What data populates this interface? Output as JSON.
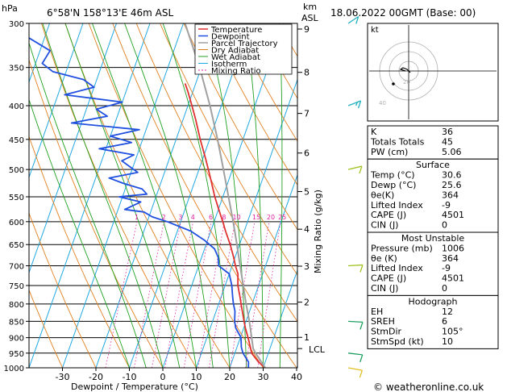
{
  "header": {
    "units_hpa": "hPa",
    "location": "6°58'N  158°13'E  46m  ASL",
    "units_km": "km",
    "units_asl": "ASL",
    "datetime": "18.06.2022  00GMT  (Base: 00)"
  },
  "chart_data": {
    "type": "skew-t",
    "xlabel": "Dewpoint / Temperature (°C)",
    "ylabel_right": "Mixing Ratio (g/kg)",
    "pressure_levels": [
      300,
      350,
      400,
      450,
      500,
      550,
      600,
      650,
      700,
      750,
      800,
      850,
      900,
      950,
      1000
    ],
    "temp_ticks": [
      -30,
      -20,
      -10,
      0,
      10,
      20,
      30,
      40
    ],
    "km_ticks": [
      {
        "km": "9",
        "p": 306
      },
      {
        "km": "8",
        "p": 356
      },
      {
        "km": "7",
        "p": 411
      },
      {
        "km": "6",
        "p": 472
      },
      {
        "km": "5",
        "p": 540
      },
      {
        "km": "4",
        "p": 616
      },
      {
        "km": "3",
        "p": 701
      },
      {
        "km": "2",
        "p": 795
      },
      {
        "km": "1",
        "p": 899
      }
    ],
    "lcl": {
      "label": "LCL",
      "p": 935
    },
    "mixing_ratio_labels": [
      "1",
      "2",
      "3",
      "4",
      "6",
      "8",
      "10",
      "15",
      "20",
      "25"
    ],
    "legend": [
      "Temperature",
      "Dewpoint",
      "Parcel Trajectory",
      "Dry Adiabat",
      "Wet Adiabat",
      "Isotherm",
      "Mixing Ratio"
    ],
    "series": [
      {
        "name": "Temperature",
        "color": "#e03030",
        "points": [
          [
            1000,
            30.6
          ],
          [
            980,
            28.0
          ],
          [
            950,
            25.0
          ],
          [
            930,
            24.0
          ],
          [
            900,
            22.3
          ],
          [
            870,
            20.5
          ],
          [
            850,
            19.4
          ],
          [
            820,
            17.8
          ],
          [
            800,
            16.7
          ],
          [
            780,
            15.6
          ],
          [
            750,
            13.8
          ],
          [
            720,
            12.6
          ],
          [
            700,
            11.0
          ],
          [
            680,
            9.6
          ],
          [
            650,
            7.2
          ],
          [
            620,
            4.4
          ],
          [
            600,
            2.6
          ],
          [
            580,
            0.6
          ],
          [
            550,
            -2.4
          ],
          [
            520,
            -5.2
          ],
          [
            500,
            -7.2
          ],
          [
            480,
            -9.3
          ],
          [
            450,
            -12.8
          ],
          [
            420,
            -16.2
          ],
          [
            400,
            -18.8
          ],
          [
            380,
            -21.6
          ],
          [
            370,
            -23.2
          ]
        ]
      },
      {
        "name": "Dewpoint",
        "color": "#2050e0",
        "points": [
          [
            1000,
            25.6
          ],
          [
            980,
            25.0
          ],
          [
            950,
            22.4
          ],
          [
            930,
            21.3
          ],
          [
            900,
            20.2
          ],
          [
            870,
            17.6
          ],
          [
            850,
            16.6
          ],
          [
            820,
            15.6
          ],
          [
            800,
            14.4
          ],
          [
            780,
            13.4
          ],
          [
            750,
            12.0
          ],
          [
            720,
            10.0
          ],
          [
            700,
            6.0
          ],
          [
            680,
            5.0
          ],
          [
            660,
            3.0
          ],
          [
            640,
            -1.0
          ],
          [
            620,
            -6.0
          ],
          [
            600,
            -14.0
          ],
          [
            590,
            -19.0
          ],
          [
            580,
            -22.0
          ],
          [
            575,
            -28.0
          ],
          [
            560,
            -24.0
          ],
          [
            550,
            -31.0
          ],
          [
            545,
            -23.0
          ],
          [
            535,
            -25.0
          ],
          [
            525,
            -31.0
          ],
          [
            515,
            -36.0
          ],
          [
            505,
            -28.0
          ],
          [
            495,
            -31.0
          ],
          [
            485,
            -34.0
          ],
          [
            475,
            -31.0
          ],
          [
            465,
            -42.0
          ],
          [
            455,
            -33.0
          ],
          [
            445,
            -40.0
          ],
          [
            435,
            -32.0
          ],
          [
            425,
            -53.0
          ],
          [
            415,
            -43.0
          ],
          [
            405,
            -47.0
          ],
          [
            395,
            -40.0
          ],
          [
            385,
            -58.0
          ],
          [
            375,
            -50.0
          ],
          [
            365,
            -54.0
          ],
          [
            355,
            -64.0
          ],
          [
            345,
            -68.0
          ],
          [
            330,
            -67.0
          ],
          [
            315,
            -75.0
          ],
          [
            300,
            -80.0
          ]
        ]
      },
      {
        "name": "Parcel Trajectory",
        "color": "#a0a0a0",
        "points": [
          [
            1000,
            30.6
          ],
          [
            950,
            26.2
          ],
          [
            935,
            25.0
          ],
          [
            900,
            23.4
          ],
          [
            850,
            21.0
          ],
          [
            800,
            18.2
          ],
          [
            750,
            15.4
          ],
          [
            700,
            12.4
          ],
          [
            650,
            9.2
          ],
          [
            600,
            5.7
          ],
          [
            550,
            1.7
          ],
          [
            500,
            -2.7
          ],
          [
            450,
            -7.6
          ],
          [
            400,
            -13.4
          ],
          [
            350,
            -20.5
          ],
          [
            300,
            -29.5
          ]
        ]
      }
    ],
    "winds": [
      {
        "p": 1000,
        "dir": 105,
        "spd": 10
      },
      {
        "p": 950,
        "dir": 100,
        "spd": 10
      },
      {
        "p": 850,
        "dir": 95,
        "spd": 10
      },
      {
        "p": 700,
        "dir": 85,
        "spd": 10
      },
      {
        "p": 500,
        "dir": 70,
        "spd": 10
      },
      {
        "p": 400,
        "dir": 60,
        "spd": 15
      },
      {
        "p": 300,
        "dir": 45,
        "spd": 10
      }
    ]
  },
  "hodograph": {
    "label": "kt",
    "ring_labels": [
      "20",
      "40"
    ]
  },
  "stats": {
    "rows": [
      {
        "label": "K",
        "value": "36"
      },
      {
        "label": "Totals Totals",
        "value": "45"
      },
      {
        "label": "PW (cm)",
        "value": "5.06"
      }
    ],
    "surface": {
      "title": "Surface",
      "rows": [
        {
          "label": "Temp (°C)",
          "value": "30.6"
        },
        {
          "label": "Dewp (°C)",
          "value": "25.6"
        },
        {
          "label": "θe(K)",
          "value": "364"
        },
        {
          "label": "Lifted Index",
          "value": "-9"
        },
        {
          "label": "CAPE (J)",
          "value": "4501"
        },
        {
          "label": "CIN (J)",
          "value": "0"
        }
      ]
    },
    "most_unstable": {
      "title": "Most Unstable",
      "rows": [
        {
          "label": "Pressure (mb)",
          "value": "1006"
        },
        {
          "label": "θe (K)",
          "value": "364"
        },
        {
          "label": "Lifted Index",
          "value": "-9"
        },
        {
          "label": "CAPE (J)",
          "value": "4501"
        },
        {
          "label": "CIN (J)",
          "value": "0"
        }
      ]
    },
    "hodograph": {
      "title": "Hodograph",
      "rows": [
        {
          "label": "EH",
          "value": "12"
        },
        {
          "label": "SREH",
          "value": "6"
        },
        {
          "label": "StmDir",
          "value": "105°"
        },
        {
          "label": "StmSpd (kt)",
          "value": "10"
        }
      ]
    }
  },
  "footer": {
    "credit": "© weatheronline.co.uk"
  }
}
